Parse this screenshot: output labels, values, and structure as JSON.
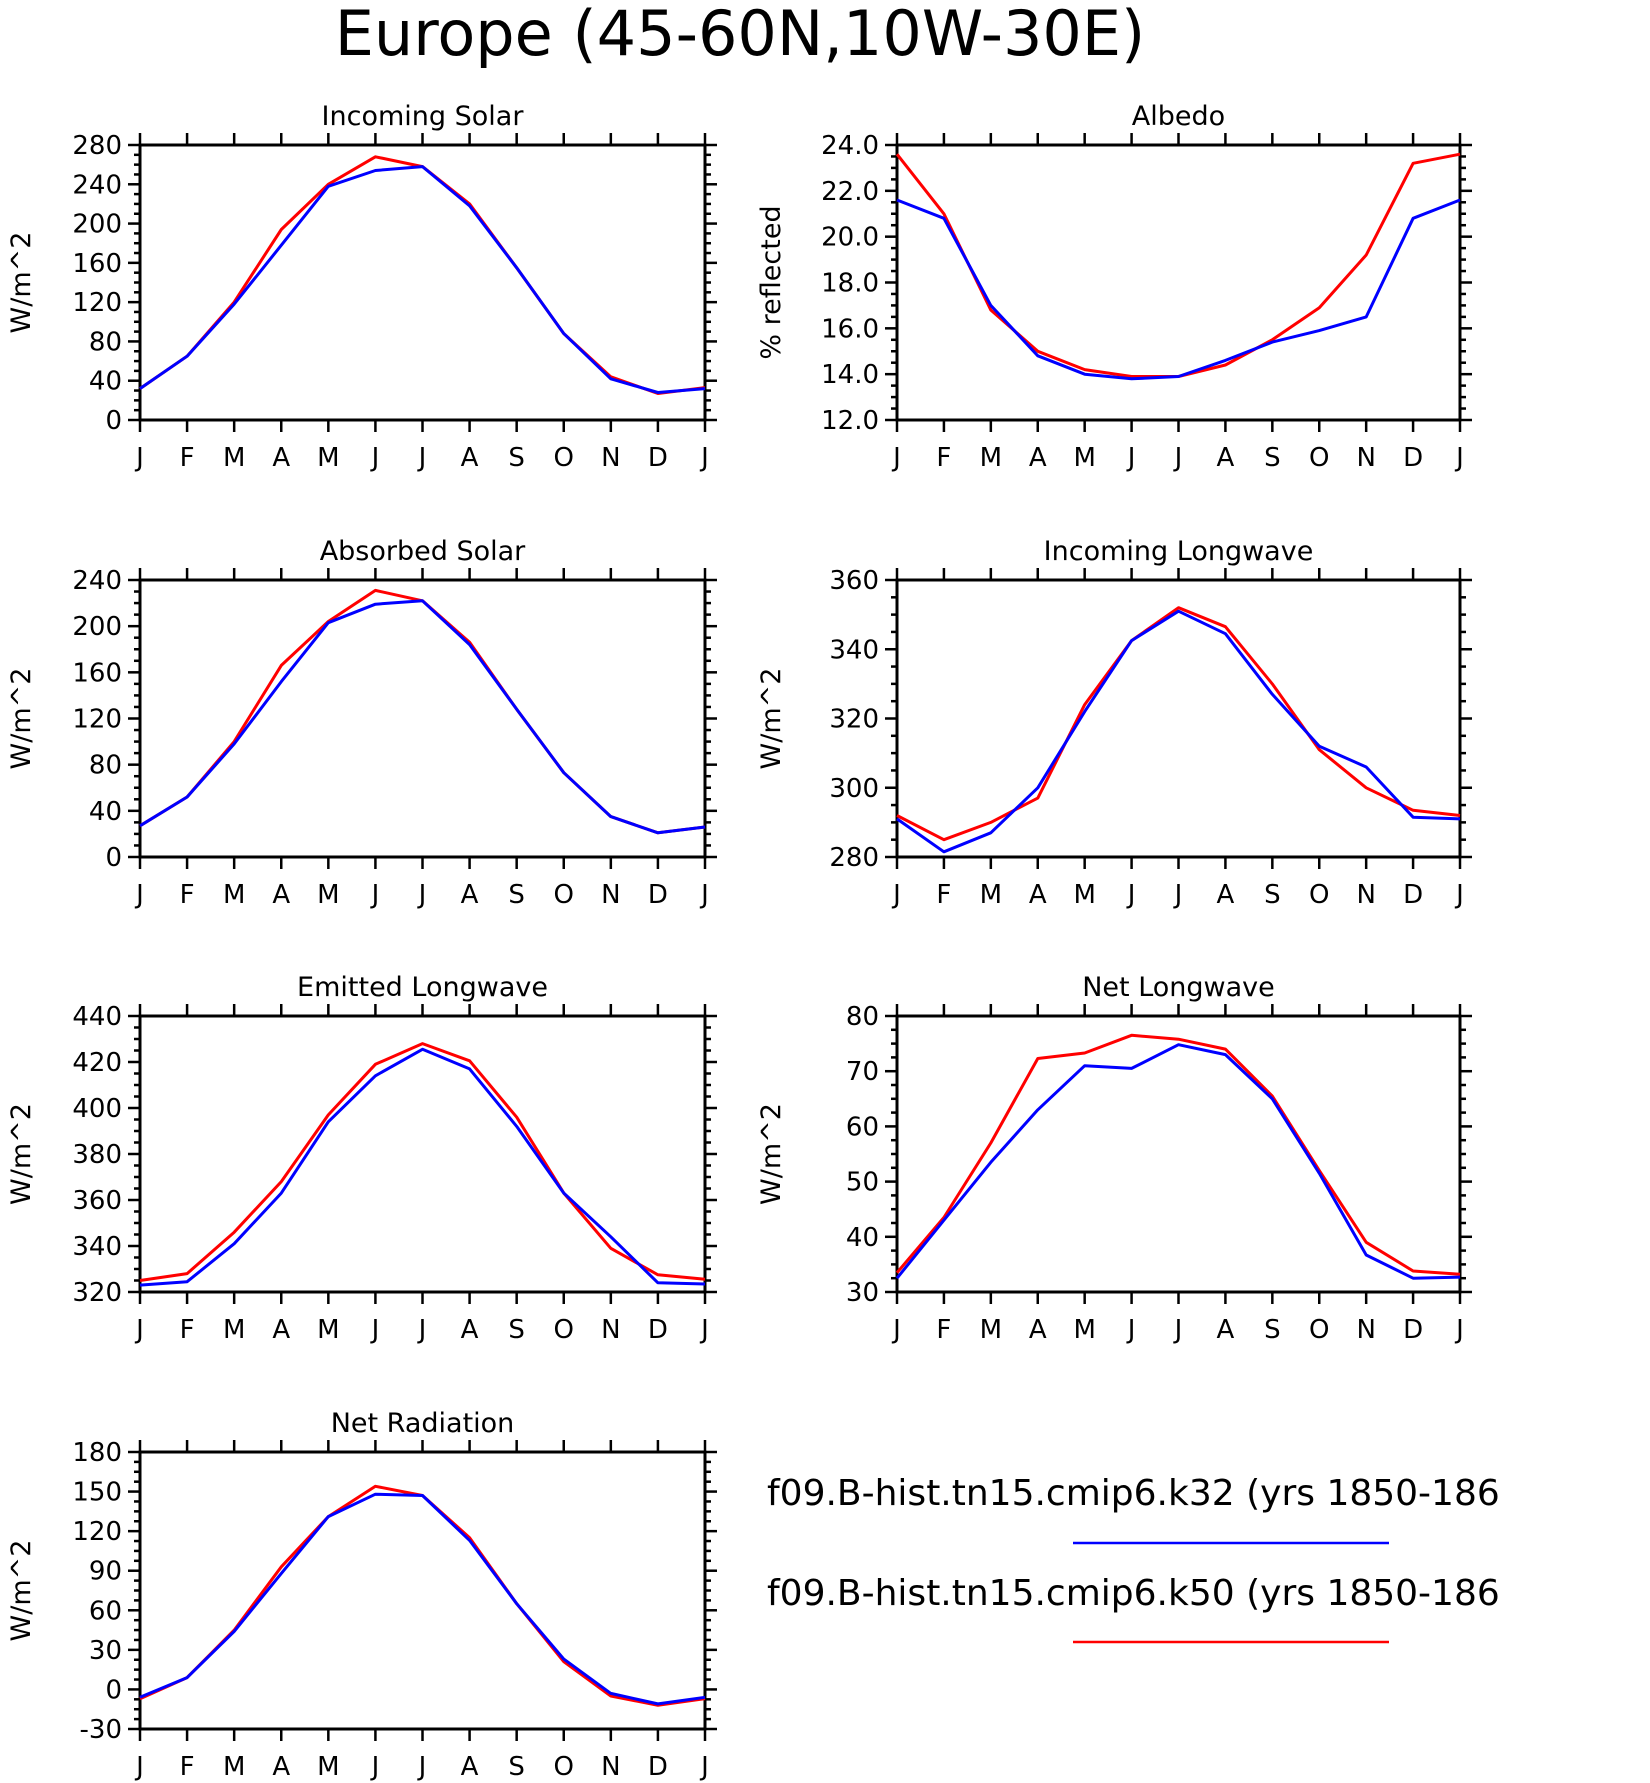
{
  "figure": {
    "title": "Europe (45-60N,10W-30E)"
  },
  "legend": {
    "entries": [
      {
        "label": "f09.B-hist.tn15.cmip6.k32 (yrs 1850-186",
        "color": "#0000ff"
      },
      {
        "label": "f09.B-hist.tn15.cmip6.k50 (yrs 1850-186",
        "color": "#ff0000"
      }
    ]
  },
  "chart_data": [
    {
      "type": "line",
      "title": "Incoming Solar",
      "ylabel": "W/m^2",
      "categories": [
        "J",
        "F",
        "M",
        "A",
        "M",
        "J",
        "J",
        "A",
        "S",
        "O",
        "N",
        "D",
        "J"
      ],
      "ylim": [
        0,
        280
      ],
      "yticks": [
        0,
        40,
        80,
        120,
        160,
        200,
        240,
        280
      ],
      "ytick_labels": [
        "0",
        "40",
        "80",
        "120",
        "160",
        "200",
        "240",
        "280"
      ],
      "series": [
        {
          "name": "f09.B-hist.tn15.cmip6.k32",
          "color": "#0000ff",
          "values": [
            32,
            65,
            118,
            178,
            238,
            254,
            258,
            218,
            155,
            88,
            42,
            28,
            32
          ]
        },
        {
          "name": "f09.B-hist.tn15.cmip6.k50",
          "color": "#ff0000",
          "values": [
            32,
            65,
            120,
            194,
            240,
            268,
            258,
            220,
            155,
            88,
            44,
            27,
            33
          ]
        }
      ]
    },
    {
      "type": "line",
      "title": "Albedo",
      "ylabel": "% reflected",
      "categories": [
        "J",
        "F",
        "M",
        "A",
        "M",
        "J",
        "J",
        "A",
        "S",
        "O",
        "N",
        "D",
        "J"
      ],
      "ylim": [
        12,
        24
      ],
      "yticks": [
        12,
        14,
        16,
        18,
        20,
        22,
        24
      ],
      "ytick_labels": [
        "12.0",
        "14.0",
        "16.0",
        "18.0",
        "20.0",
        "22.0",
        "24.0"
      ],
      "series": [
        {
          "name": "f09.B-hist.tn15.cmip6.k32",
          "color": "#0000ff",
          "values": [
            21.6,
            20.8,
            17.0,
            14.8,
            14.0,
            13.8,
            13.9,
            14.6,
            15.4,
            15.9,
            16.5,
            20.8,
            21.6
          ]
        },
        {
          "name": "f09.B-hist.tn15.cmip6.k50",
          "color": "#ff0000",
          "values": [
            23.6,
            21.0,
            16.8,
            15.0,
            14.2,
            13.9,
            13.9,
            14.4,
            15.5,
            16.9,
            19.2,
            23.2,
            23.6
          ]
        }
      ]
    },
    {
      "type": "line",
      "title": "Absorbed Solar",
      "ylabel": "W/m^2",
      "categories": [
        "J",
        "F",
        "M",
        "A",
        "M",
        "J",
        "J",
        "A",
        "S",
        "O",
        "N",
        "D",
        "J"
      ],
      "ylim": [
        0,
        240
      ],
      "yticks": [
        0,
        40,
        80,
        120,
        160,
        200,
        240
      ],
      "ytick_labels": [
        "0",
        "40",
        "80",
        "120",
        "160",
        "200",
        "240"
      ],
      "series": [
        {
          "name": "f09.B-hist.tn15.cmip6.k32",
          "color": "#0000ff",
          "values": [
            27,
            52,
            98,
            152,
            203,
            219,
            222,
            184,
            128,
            73,
            35,
            21,
            26
          ]
        },
        {
          "name": "f09.B-hist.tn15.cmip6.k50",
          "color": "#ff0000",
          "values": [
            27,
            52,
            100,
            166,
            204,
            231,
            222,
            186,
            128,
            73,
            35,
            21,
            26
          ]
        }
      ]
    },
    {
      "type": "line",
      "title": "Incoming Longwave",
      "ylabel": "W/m^2",
      "categories": [
        "J",
        "F",
        "M",
        "A",
        "M",
        "J",
        "J",
        "A",
        "S",
        "O",
        "N",
        "D",
        "J"
      ],
      "ylim": [
        280,
        360
      ],
      "yticks": [
        280,
        300,
        320,
        340,
        360
      ],
      "ytick_labels": [
        "280",
        "300",
        "320",
        "340",
        "360"
      ],
      "series": [
        {
          "name": "f09.B-hist.tn15.cmip6.k32",
          "color": "#0000ff",
          "values": [
            291,
            281.5,
            287,
            300,
            322,
            342.5,
            351,
            344.5,
            327,
            312,
            306,
            291.5,
            291
          ]
        },
        {
          "name": "f09.B-hist.tn15.cmip6.k50",
          "color": "#ff0000",
          "values": [
            292,
            285,
            290,
            297,
            324,
            342.5,
            352,
            346.5,
            330,
            311,
            300,
            293.5,
            292
          ]
        }
      ]
    },
    {
      "type": "line",
      "title": "Emitted Longwave",
      "ylabel": "W/m^2",
      "categories": [
        "J",
        "F",
        "M",
        "A",
        "M",
        "J",
        "J",
        "A",
        "S",
        "O",
        "N",
        "D",
        "J"
      ],
      "ylim": [
        320,
        440
      ],
      "yticks": [
        320,
        340,
        360,
        380,
        400,
        420,
        440
      ],
      "ytick_labels": [
        "320",
        "340",
        "360",
        "380",
        "400",
        "420",
        "440"
      ],
      "series": [
        {
          "name": "f09.B-hist.tn15.cmip6.k32",
          "color": "#0000ff",
          "values": [
            323,
            324.5,
            341,
            363,
            394,
            414,
            425.5,
            417,
            392,
            363,
            344,
            324,
            323.5
          ]
        },
        {
          "name": "f09.B-hist.tn15.cmip6.k50",
          "color": "#ff0000",
          "values": [
            325,
            328,
            346,
            368,
            397,
            419,
            428,
            420.5,
            396,
            363,
            339,
            327.5,
            325.5
          ]
        }
      ]
    },
    {
      "type": "line",
      "title": "Net Longwave",
      "ylabel": "W/m^2",
      "categories": [
        "J",
        "F",
        "M",
        "A",
        "M",
        "J",
        "J",
        "A",
        "S",
        "O",
        "N",
        "D",
        "J"
      ],
      "ylim": [
        30,
        80
      ],
      "yticks": [
        30,
        40,
        50,
        60,
        70,
        80
      ],
      "ytick_labels": [
        "30",
        "40",
        "50",
        "60",
        "70",
        "80"
      ],
      "series": [
        {
          "name": "f09.B-hist.tn15.cmip6.k32",
          "color": "#0000ff",
          "values": [
            32.5,
            43,
            53.5,
            63,
            71,
            70.5,
            74.8,
            73,
            65,
            51.5,
            36.7,
            32.5,
            32.7
          ]
        },
        {
          "name": "f09.B-hist.tn15.cmip6.k50",
          "color": "#ff0000",
          "values": [
            33.5,
            43.5,
            57,
            72.3,
            73.3,
            76.5,
            75.8,
            74,
            65.5,
            52,
            39,
            33.8,
            33.2
          ]
        }
      ]
    },
    {
      "type": "line",
      "title": "Net Radiation",
      "ylabel": "W/m^2",
      "categories": [
        "J",
        "F",
        "M",
        "A",
        "M",
        "J",
        "J",
        "A",
        "S",
        "O",
        "N",
        "D",
        "J"
      ],
      "ylim": [
        -30,
        180
      ],
      "yticks": [
        -30,
        0,
        30,
        60,
        90,
        120,
        150,
        180
      ],
      "ytick_labels": [
        "-30",
        "0",
        "30",
        "60",
        "90",
        "120",
        "150",
        "180"
      ],
      "series": [
        {
          "name": "f09.B-hist.tn15.cmip6.k32",
          "color": "#0000ff",
          "values": [
            -6,
            9,
            44,
            88,
            131,
            148,
            147,
            113,
            65,
            23,
            -3,
            -11,
            -6
          ]
        },
        {
          "name": "f09.B-hist.tn15.cmip6.k50",
          "color": "#ff0000",
          "values": [
            -7,
            9,
            45,
            93,
            131,
            154,
            147,
            115,
            65,
            21,
            -5,
            -12,
            -7
          ]
        }
      ]
    }
  ]
}
